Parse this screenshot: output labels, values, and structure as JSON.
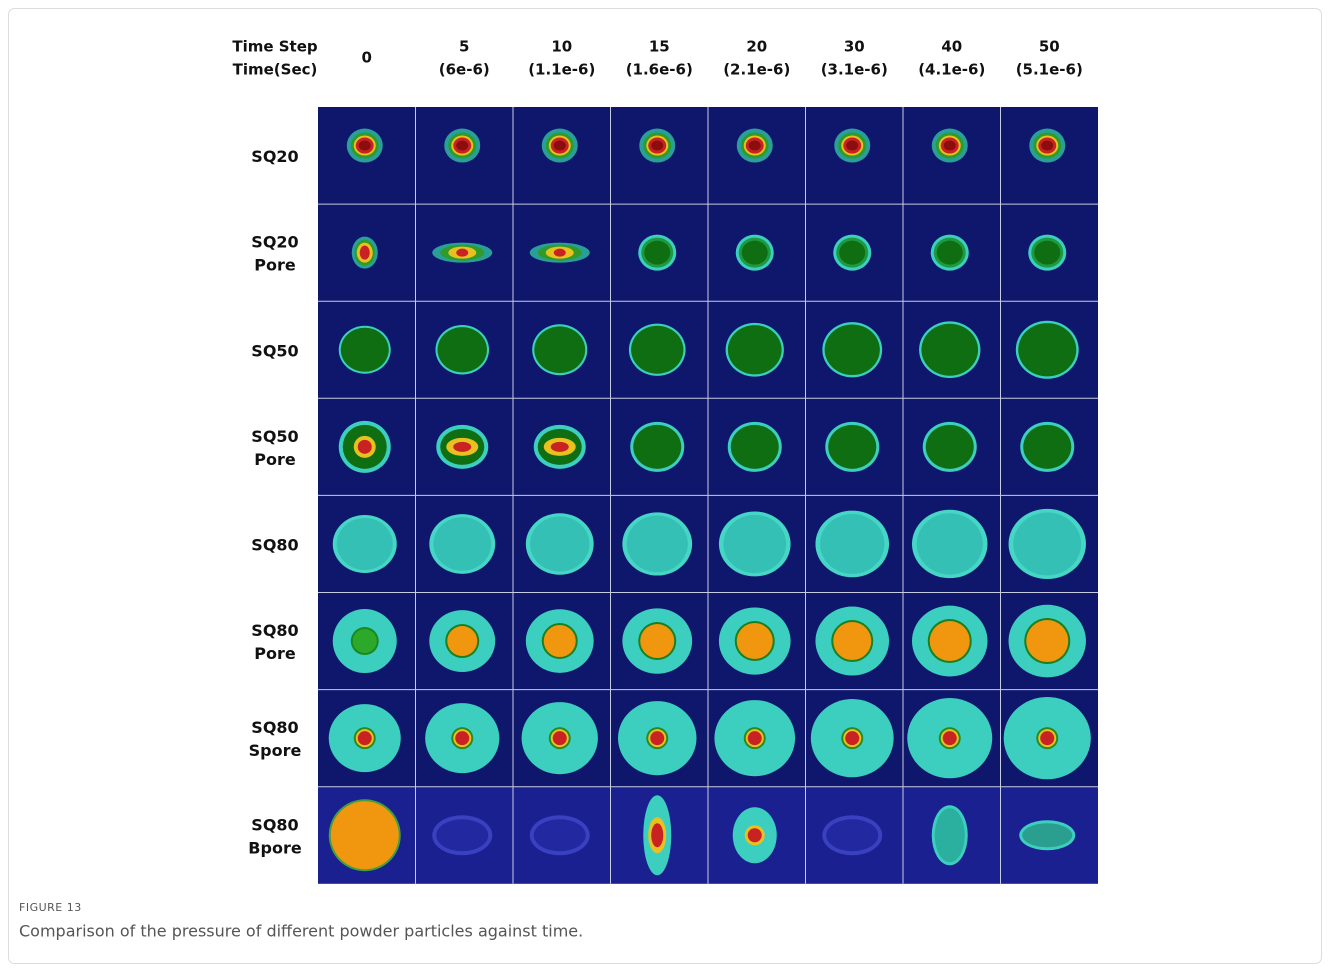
{
  "header": {
    "row_label": [
      "Time Step",
      "Time(Sec)"
    ],
    "columns": [
      {
        "step": "0"
      },
      {
        "step": "5",
        "time": "(6e-6)"
      },
      {
        "step": "10",
        "time": "(1.1e-6)"
      },
      {
        "step": "15",
        "time": "(1.6e-6)"
      },
      {
        "step": "20",
        "time": "(2.1e-6)"
      },
      {
        "step": "30",
        "time": "(3.1e-6)"
      },
      {
        "step": "40",
        "time": "(4.1e-6)"
      },
      {
        "step": "50",
        "time": "(5.1e-6)"
      }
    ]
  },
  "rows": [
    {
      "label": [
        "SQ20"
      ]
    },
    {
      "label": [
        "SQ20",
        "Pore"
      ]
    },
    {
      "label": [
        "SQ50"
      ]
    },
    {
      "label": [
        "SQ50",
        "Pore"
      ]
    },
    {
      "label": [
        "SQ80"
      ]
    },
    {
      "label": [
        "SQ80",
        "Pore"
      ]
    },
    {
      "label": [
        "SQ80",
        "Spore"
      ]
    },
    {
      "label": [
        "SQ80",
        "Bpore"
      ]
    }
  ],
  "figure": {
    "label": "FIGURE 13",
    "caption": "Comparison of the pressure of different powder particles against time."
  }
}
